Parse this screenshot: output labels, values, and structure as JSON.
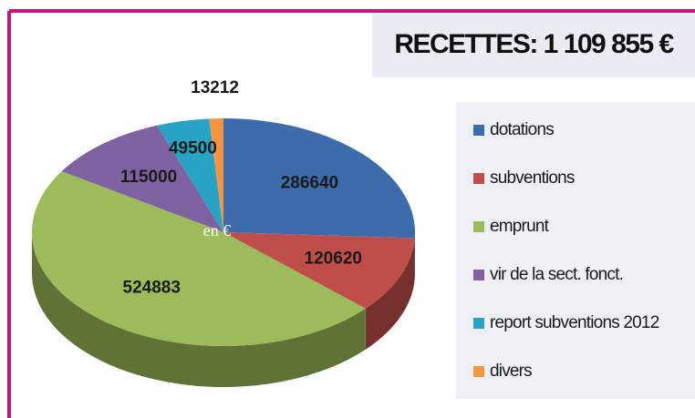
{
  "chart_data": {
    "type": "pie",
    "title": "RECETTES: 1 109 855 €",
    "annotation": "en €",
    "categories": [
      "dotations",
      "subventions",
      "emprunt",
      "vir de la sect. fonct.",
      "report subventions 2012",
      "divers"
    ],
    "values": [
      286640,
      120620,
      524883,
      115000,
      49500,
      13212
    ],
    "colors": [
      "#3d6cac",
      "#bf4e4b",
      "#9cbb5a",
      "#7f62a1",
      "#28a3c3",
      "#f59443"
    ],
    "legend": "right"
  }
}
